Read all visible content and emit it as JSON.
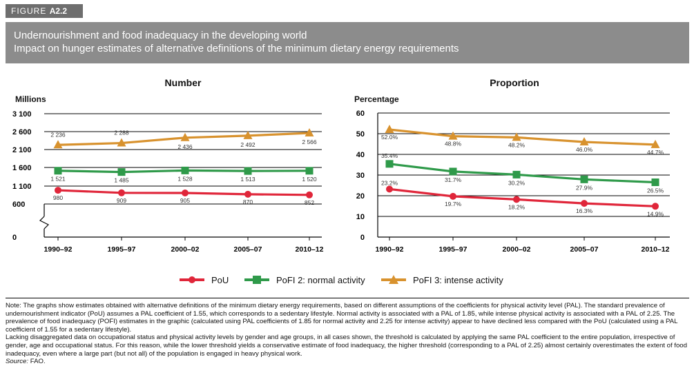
{
  "figure": {
    "label_prefix": "FIGURE",
    "label_number": "A2.2"
  },
  "title": {
    "line1": "Undernourishment and food inadequacy in the developing world",
    "line2": "Impact on hunger estimates of alternative definitions of the minimum dietary energy requirements"
  },
  "colors": {
    "pou": "#e0263a",
    "pofi2": "#2f9a4a",
    "pofi3": "#d8922e"
  },
  "legend": [
    {
      "key": "pou",
      "label": "PoU",
      "marker": "circle"
    },
    {
      "key": "pofi2",
      "label": "PoFI 2: normal activity",
      "marker": "square"
    },
    {
      "key": "pofi3",
      "label": "PoFI 3: intense activity",
      "marker": "triangle"
    }
  ],
  "chart_data": [
    {
      "type": "line",
      "title": "Number",
      "ylabel": "Millions",
      "categories": [
        "1990–92",
        "1995–97",
        "2000–02",
        "2005–07",
        "2010–12"
      ],
      "yticks": [
        "0",
        "600",
        "1 100",
        "1 600",
        "2 100",
        "2 600",
        "3 100"
      ],
      "ylim": [
        600,
        3100
      ],
      "axis_break": true,
      "grid": true,
      "series": [
        {
          "key": "pou",
          "name": "PoU",
          "values": [
            980,
            909,
            905,
            870,
            852
          ],
          "labels": [
            "980",
            "909",
            "905",
            "870",
            "852"
          ]
        },
        {
          "key": "pofi2",
          "name": "PoFI 2: normal activity",
          "values": [
            1521,
            1485,
            1528,
            1513,
            1520
          ],
          "labels": [
            "1 521",
            "1 485",
            "1 528",
            "1 513",
            "1 520"
          ]
        },
        {
          "key": "pofi3",
          "name": "PoFI 3: intense activity",
          "values": [
            2236,
            2288,
            2436,
            2492,
            2566
          ],
          "labels": [
            "2 236",
            "2 288",
            "2 436",
            "2 492",
            "2 566"
          ]
        }
      ]
    },
    {
      "type": "line",
      "title": "Proportion",
      "ylabel": "Percentage",
      "categories": [
        "1990–92",
        "1995–97",
        "2000–02",
        "2005–07",
        "2010–12"
      ],
      "yticks": [
        "0",
        "10",
        "20",
        "30",
        "40",
        "50",
        "60"
      ],
      "ylim": [
        0,
        60
      ],
      "grid": true,
      "series": [
        {
          "key": "pou",
          "name": "PoU",
          "values": [
            23.2,
            19.7,
            18.2,
            16.3,
            14.9
          ],
          "labels": [
            "23.2%",
            "19.7%",
            "18.2%",
            "16.3%",
            "14.9%"
          ]
        },
        {
          "key": "pofi2",
          "name": "PoFI 2: normal activity",
          "values": [
            35.4,
            31.7,
            30.2,
            27.9,
            26.5
          ],
          "labels": [
            "35.4%",
            "31.7%",
            "30.2%",
            "27.9%",
            "26.5%"
          ]
        },
        {
          "key": "pofi3",
          "name": "PoFI 3: intense activity",
          "values": [
            52.0,
            48.8,
            48.2,
            46.0,
            44.7
          ],
          "labels": [
            "52.0%",
            "48.8%",
            "48.2%",
            "46.0%",
            "44.7%"
          ]
        }
      ]
    }
  ],
  "note": {
    "para1": "Note: The graphs show estimates obtained with alternative definitions of the minimum dietary energy requirements, based on different assumptions of the coefficients for physical activity level (PAL). The standard prevalence of undernourishment indicator (PoU) assumes a PAL coefficient of 1.55, which corresponds to a sedentary lifestyle. Normal activity is associated with a PAL of 1.85, while intense physical activity is associated with a PAL of 2.25. The prevalence of food inadequacy (POFI) estimates in the graphic (calculated using PAL coefficients of 1.85 for normal activity and 2.25 for intense activity) appear to have declined less compared with the PoU (calculated using a PAL coefficient of 1.55 for a sedentary lifestyle).",
    "para2": "Lacking disaggregated data on occupational status and physical activity levels by gender and age groups, in all cases shown, the threshold is calculated by applying the same PAL coefficient to the entire population, irrespective of gender, age and occupational status. For this reason, while the lower threshold yields a conservative estimate of food inadequacy, the higher threshold (corresponding to a PAL of 2.25) almost certainly overestimates the extent of food inadequacy, even where a large part (but not all) of the population is engaged in heavy physical work.",
    "source_label": "Source:",
    "source_value": "FAO."
  }
}
